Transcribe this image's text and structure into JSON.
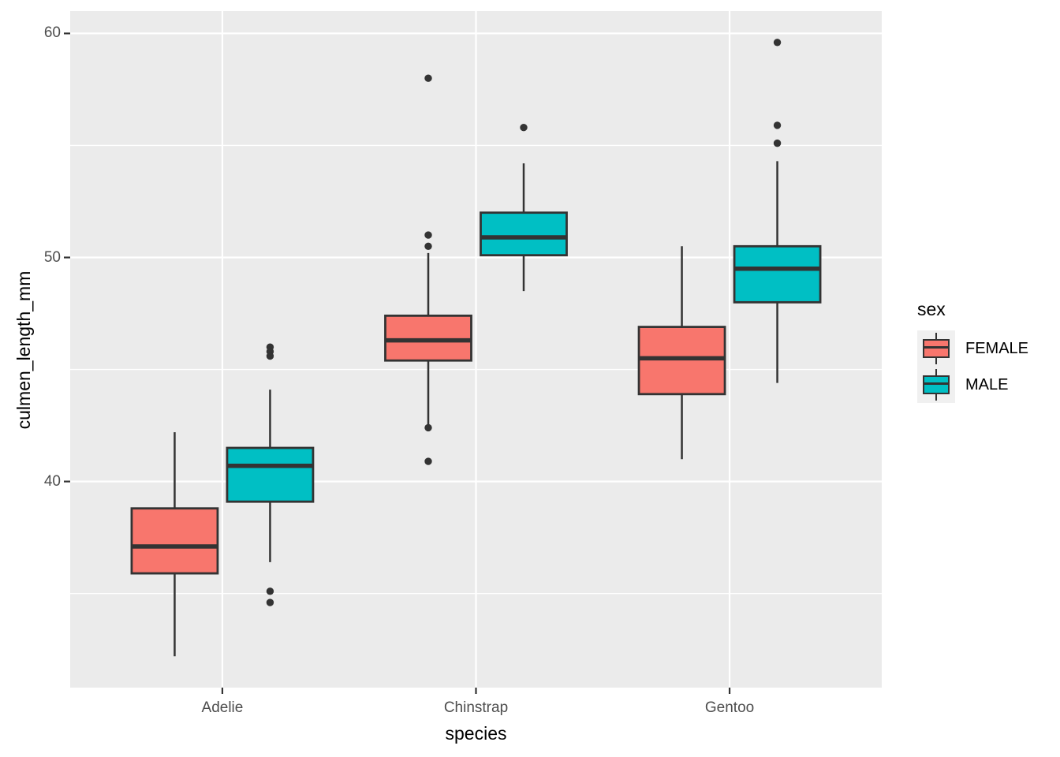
{
  "figure": {
    "background": "#ffffff"
  },
  "chart_data": {
    "type": "boxplot",
    "title": "",
    "xlabel": "species",
    "ylabel": "culmen_length_mm",
    "categories": [
      "Adelie",
      "Chinstrap",
      "Gentoo"
    ],
    "ylim": [
      30.8,
      61.0
    ],
    "yticks": [
      {
        "value": 40,
        "label": "40"
      },
      {
        "value": 50,
        "label": "50"
      },
      {
        "value": 60,
        "label": "60"
      }
    ],
    "yticks_minor": [
      35,
      45,
      55
    ],
    "grid": "white major and minor gridlines on grey panel",
    "legend_position": "right",
    "series": [
      {
        "name": "FEMALE",
        "color": "#F8766D",
        "boxes": [
          {
            "category": "Adelie",
            "whisker_low": 32.2,
            "q1": 35.9,
            "median": 37.1,
            "q3": 38.8,
            "whisker_high": 42.2,
            "outliers": []
          },
          {
            "category": "Chinstrap",
            "whisker_low": 42.5,
            "q1": 45.4,
            "median": 46.3,
            "q3": 47.4,
            "whisker_high": 50.2,
            "outliers": [
              58.0,
              51.0,
              50.5,
              42.4,
              40.9
            ]
          },
          {
            "category": "Gentoo",
            "whisker_low": 41.0,
            "q1": 43.9,
            "median": 45.5,
            "q3": 46.9,
            "whisker_high": 50.5,
            "outliers": []
          }
        ]
      },
      {
        "name": "MALE",
        "color": "#00BFC4",
        "boxes": [
          {
            "category": "Adelie",
            "whisker_low": 36.4,
            "q1": 39.1,
            "median": 40.7,
            "q3": 41.5,
            "whisker_high": 44.1,
            "outliers": [
              46.0,
              45.8,
              45.6,
              35.1,
              34.6
            ]
          },
          {
            "category": "Chinstrap",
            "whisker_low": 48.5,
            "q1": 50.1,
            "median": 50.9,
            "q3": 52.0,
            "whisker_high": 54.2,
            "outliers": [
              55.8
            ]
          },
          {
            "category": "Gentoo",
            "whisker_low": 44.4,
            "q1": 48.0,
            "median": 49.5,
            "q3": 50.5,
            "whisker_high": 54.3,
            "outliers": [
              59.6,
              55.9,
              55.1
            ]
          }
        ]
      }
    ]
  },
  "legend": {
    "title": "sex",
    "entries": [
      {
        "label": "FEMALE",
        "color": "#F8766D"
      },
      {
        "label": "MALE",
        "color": "#00BFC4"
      }
    ]
  },
  "style": {
    "panel_color": "#EBEBEB",
    "grid_color": "#FFFFFF",
    "outline_color": "#333333",
    "tick_label_color": "#4D4D4D",
    "axis_title_color": "#000000"
  }
}
